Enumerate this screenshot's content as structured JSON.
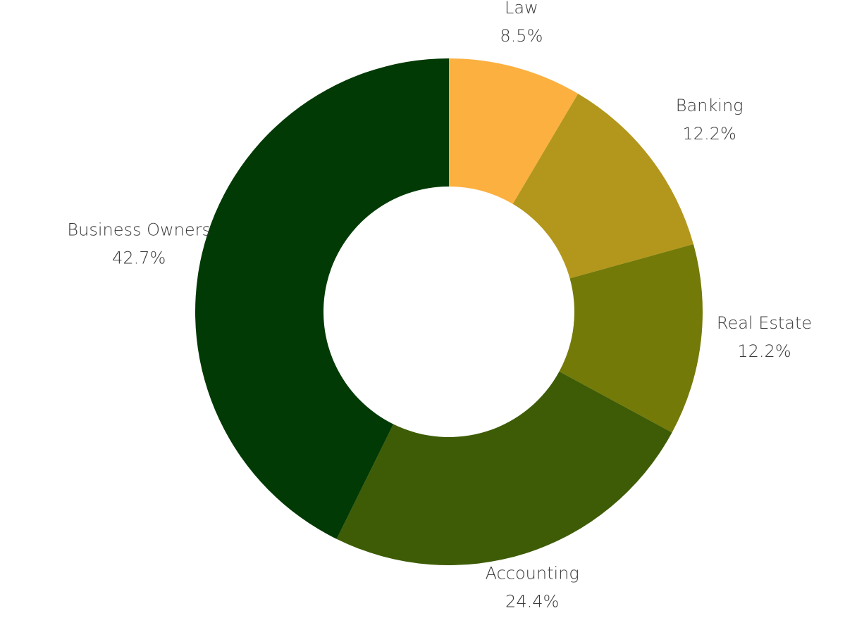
{
  "chart_data": {
    "type": "pie",
    "title": "",
    "donut": true,
    "start_angle_deg": 0,
    "direction": "clockwise",
    "slices": [
      {
        "label": "Law",
        "value": 8.5,
        "display": "8.5%",
        "color": "#FBB040"
      },
      {
        "label": "Banking",
        "value": 12.2,
        "display": "12.2%",
        "color": "#B3971C"
      },
      {
        "label": "Real Estate",
        "value": 12.2,
        "display": "12.2%",
        "color": "#737A08"
      },
      {
        "label": "Accounting",
        "value": 24.4,
        "display": "24.4%",
        "color": "#3D5C05"
      },
      {
        "label": "Business Owners",
        "value": 42.7,
        "display": "42.7%",
        "color": "#013A04"
      }
    ]
  }
}
